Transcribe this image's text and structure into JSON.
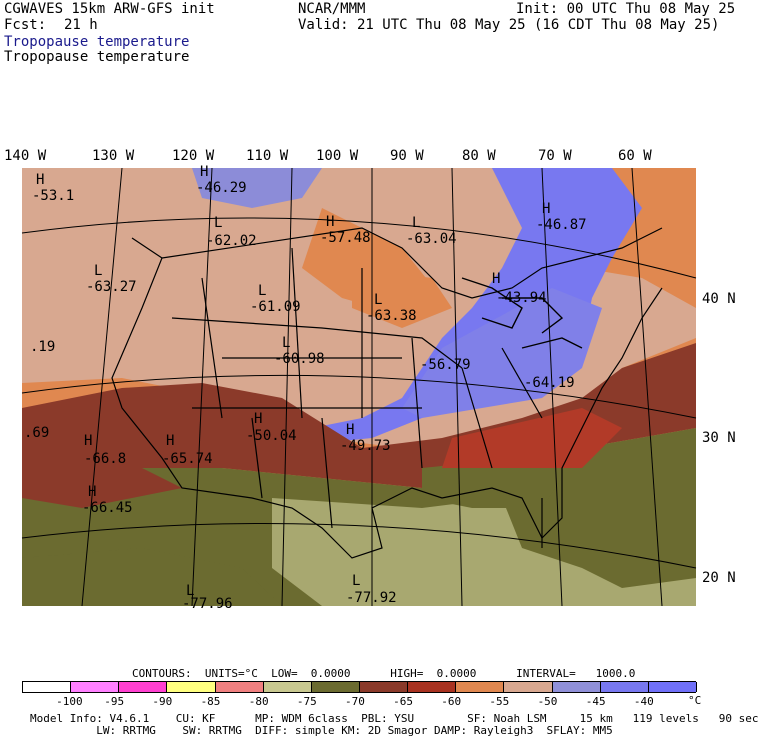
{
  "header": {
    "model_title": "CGWAVES 15km ARW-GFS init",
    "forecast_label": "Fcst:",
    "forecast_hours": "21 h",
    "org": "NCAR/MMM",
    "init_time": "Init: 00 UTC Thu 08 May 25",
    "valid_time": "Valid: 21 UTC Thu 08 May 25 (16 CDT Thu 08 May 25)",
    "field_title_colored": "Tropopause temperature",
    "field_title": "Tropopause temperature"
  },
  "map": {
    "longitude_labels": [
      "140 W",
      "130 W",
      "120 W",
      "110 W",
      "100 W",
      "90 W",
      "80 W",
      "70 W",
      "60 W"
    ],
    "latitude_labels": [
      "40 N",
      "30 N",
      "20 N"
    ],
    "extrema": [
      {
        "type": "H",
        "value": "-53.1"
      },
      {
        "type": "H",
        "value": "-46.29"
      },
      {
        "type": "L",
        "value": "-62.02"
      },
      {
        "type": "H",
        "value": "-57.48"
      },
      {
        "type": "L",
        "value": "-63.04"
      },
      {
        "type": "H",
        "value": "-46.87"
      },
      {
        "type": "L",
        "value": "-63.27"
      },
      {
        "type": "L",
        "value": "-61.09"
      },
      {
        "type": "L",
        "value": "-63.38"
      },
      {
        "type": "H",
        "value": "-43.94"
      },
      {
        "type": "",
        "value": ".19"
      },
      {
        "type": "L",
        "value": "-60.98"
      },
      {
        "type": "",
        "value": "-56.79"
      },
      {
        "type": "",
        "value": "-64.19"
      },
      {
        "type": "",
        "value": ".69"
      },
      {
        "type": "H",
        "value": "-50.04"
      },
      {
        "type": "H",
        "value": "-49.73"
      },
      {
        "type": "H",
        "value": "-66.8"
      },
      {
        "type": "H",
        "value": "-65.74"
      },
      {
        "type": "H",
        "value": "-66.45"
      },
      {
        "type": "L",
        "value": "-77.96"
      },
      {
        "type": "L",
        "value": "-77.92"
      }
    ]
  },
  "contour_info": {
    "text": "CONTOURS:  UNITS=°C  LOW=  0.0000      HIGH=  0.0000      INTERVAL=   1000.0"
  },
  "colorbar": {
    "units": "°C",
    "levels": [
      "-100",
      "-95",
      "-90",
      "-85",
      "-80",
      "-75",
      "-70",
      "-65",
      "-60",
      "-55",
      "-50",
      "-45",
      "-40"
    ],
    "colors": [
      "#ffffff",
      "#ff80ff",
      "#ff40d0",
      "#ffff80",
      "#f08080",
      "#c8c890",
      "#6b6b30",
      "#8b3a2a",
      "#a83220",
      "#e08850",
      "#d8a890",
      "#9090d8",
      "#7878f0",
      "#7070f8"
    ]
  },
  "footer": {
    "line1": "Model Info: V4.6.1    CU: KF      MP: WDM 6class  PBL: YSU        SF: Noah LSM     15 km   119 levels   90 sec",
    "line2": "          LW: RRTMG    SW: RRTMG  DIFF: simple KM: 2D Smagor DAMP: Rayleigh3  SFLAY: MM5"
  }
}
